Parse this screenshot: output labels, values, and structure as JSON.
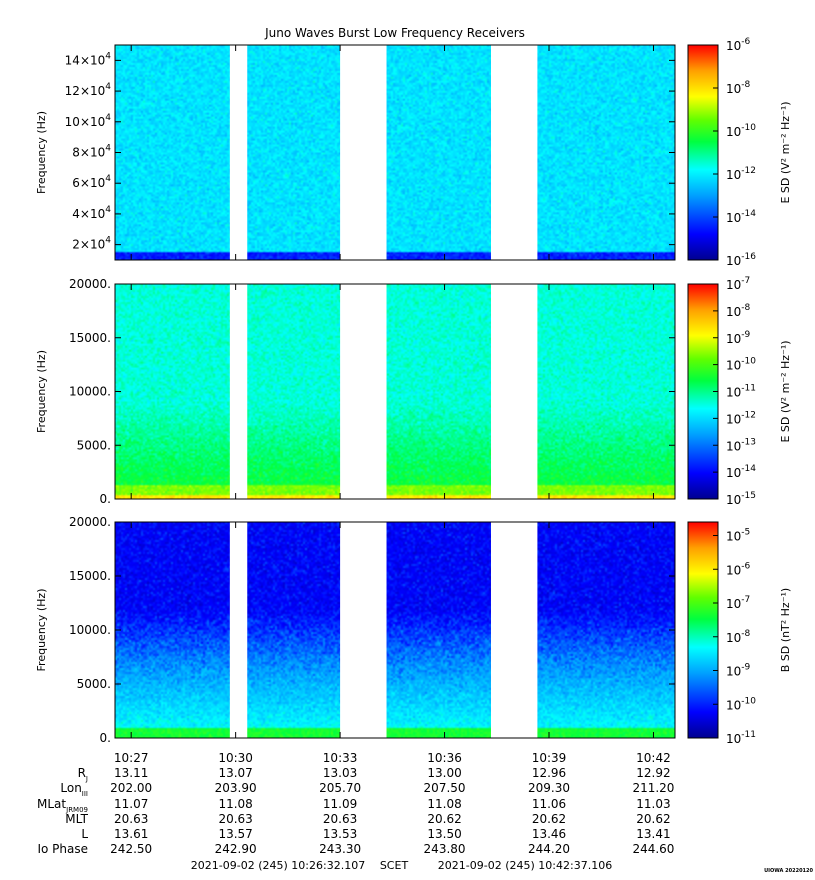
{
  "chart_data": {
    "type": "heatmap",
    "title": "Juno Waves Burst Low Frequency Receivers",
    "time_ticks": [
      "10:27",
      "10:30",
      "10:33",
      "10:36",
      "10:39",
      "10:42"
    ],
    "data_gaps": [
      [
        "10:29:50",
        "10:30:20"
      ],
      [
        "10:33:00",
        "10:34:20"
      ],
      [
        "10:37:20",
        "10:38:40"
      ]
    ],
    "panels": [
      {
        "ylabel": "Frequency (Hz)",
        "y_ticks": [
          {
            "value": 20000,
            "mant": "2×10",
            "exp": "4"
          },
          {
            "value": 40000,
            "mant": "4×10",
            "exp": "4"
          },
          {
            "value": 60000,
            "mant": "6×10",
            "exp": "4"
          },
          {
            "value": 80000,
            "mant": "8×10",
            "exp": "4"
          },
          {
            "value": 100000,
            "mant": "10×10",
            "exp": "4"
          },
          {
            "value": 120000,
            "mant": "12×10",
            "exp": "4"
          },
          {
            "value": 140000,
            "mant": "14×10",
            "exp": "4"
          }
        ],
        "ylim": [
          10000,
          150000
        ],
        "colorbar_label": "E SD (V² m⁻² Hz⁻¹)",
        "colorbar_exponents": [
          "-6",
          "-8",
          "-10",
          "-12",
          "-14",
          "-16"
        ],
        "colorbar_range_exp": [
          -16,
          -6
        ],
        "intensity_profile": "flat_high"
      },
      {
        "ylabel": "Frequency (Hz)",
        "y_ticks": [
          {
            "value": 0,
            "label": "0."
          },
          {
            "value": 5000,
            "label": "5000."
          },
          {
            "value": 10000,
            "label": "10000."
          },
          {
            "value": 15000,
            "label": "15000."
          },
          {
            "value": 20000,
            "label": "20000."
          }
        ],
        "ylim": [
          0,
          20000
        ],
        "colorbar_label": "E SD (V² m⁻² Hz⁻¹)",
        "colorbar_exponents": [
          "-7",
          "-8",
          "-9",
          "-10",
          "-11",
          "-12",
          "-13",
          "-14",
          "-15"
        ],
        "colorbar_range_exp": [
          -15,
          -7
        ],
        "intensity_profile": "low_freq_enhanced"
      },
      {
        "ylabel": "Frequency (Hz)",
        "y_ticks": [
          {
            "value": 0,
            "label": "0."
          },
          {
            "value": 5000,
            "label": "5000."
          },
          {
            "value": 10000,
            "label": "10000."
          },
          {
            "value": 15000,
            "label": "15000."
          },
          {
            "value": 20000,
            "label": "20000."
          }
        ],
        "ylim": [
          0,
          20000
        ],
        "colorbar_label": "B SD (nT² Hz⁻¹)",
        "colorbar_exponents": [
          "-5",
          "-6",
          "-7",
          "-8",
          "-9",
          "-10",
          "-11"
        ],
        "colorbar_range_exp": [
          -11,
          -4.6
        ],
        "intensity_profile": "magnetic_decay"
      }
    ],
    "ephemeris": {
      "labels": [
        {
          "key": "R",
          "sub": "J"
        },
        {
          "key": "Lon",
          "sub": "III"
        },
        {
          "key": "MLat",
          "sub": "JRM09"
        },
        {
          "key": "MLT",
          "sub": ""
        },
        {
          "key": "L",
          "sub": ""
        },
        {
          "key": "Io Phase",
          "sub": ""
        }
      ],
      "rows": [
        [
          "13.11",
          "13.07",
          "13.03",
          "13.00",
          "12.96",
          "12.92"
        ],
        [
          "202.00",
          "203.90",
          "205.70",
          "207.50",
          "209.30",
          "211.20"
        ],
        [
          "11.07",
          "11.08",
          "11.09",
          "11.08",
          "11.06",
          "11.03"
        ],
        [
          "20.63",
          "20.63",
          "20.63",
          "20.62",
          "20.62",
          "20.62"
        ],
        [
          "13.61",
          "13.57",
          "13.53",
          "13.50",
          "13.46",
          "13.41"
        ],
        [
          "242.50",
          "242.90",
          "243.30",
          "243.80",
          "244.20",
          "244.60"
        ]
      ]
    },
    "time_range": {
      "start": "2021-09-02 (245) 10:26:32.107",
      "scet_label": "SCET",
      "end": "2021-09-02 (245) 10:42:37.106"
    },
    "credit": "UIOWA 20220120"
  },
  "colors": {
    "colormap": [
      "#0000a0",
      "#0000ff",
      "#00a0ff",
      "#00ffff",
      "#00ff40",
      "#80ff00",
      "#ffff00",
      "#ffa000",
      "#ff0000"
    ]
  }
}
